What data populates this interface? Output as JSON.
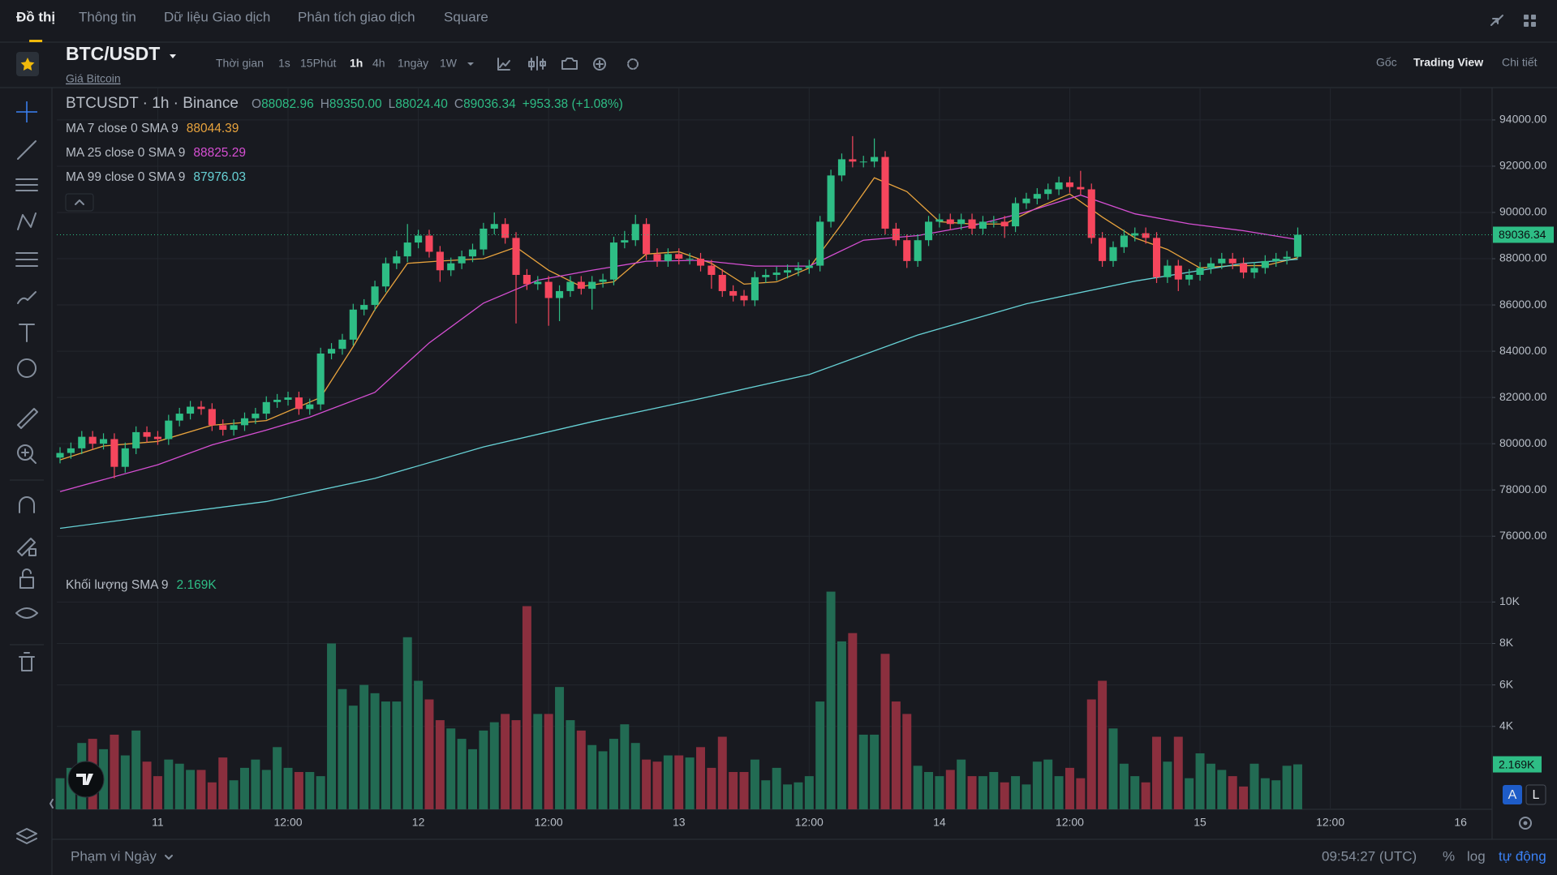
{
  "nav": {
    "tabs": [
      "Đồ thị",
      "Thông tin",
      "Dữ liệu Giao dịch",
      "Phân tích giao dịch",
      "Square"
    ],
    "active": 0
  },
  "symbol": {
    "pair": "BTC/USDT",
    "name": "Giá Bitcoin"
  },
  "toolbar": {
    "label": "Thời gian",
    "intervals": [
      "1s",
      "15Phút",
      "1h",
      "4h",
      "1ngày",
      "1W"
    ],
    "active": 2
  },
  "views": {
    "items": [
      "Gốc",
      "Trading View",
      "Chi tiết"
    ],
    "active": 1
  },
  "scale_buttons": [
    "A",
    "L"
  ],
  "footer": {
    "range": "Phạm vi Ngày",
    "clock": "09:54:27 (UTC)",
    "percent": "%",
    "log": "log",
    "auto": "tự động"
  },
  "chart_data": [
    {
      "type": "candlestick",
      "title": "BTCUSDT · 1h · Binance",
      "ohlc": [
        {
          "key": "O",
          "text": "88082.96"
        },
        {
          "key": "H",
          "text": "89350.00"
        },
        {
          "key": "L",
          "text": "88024.40"
        },
        {
          "key": "C",
          "text": "89036.34"
        }
      ],
      "change": "+953.38 (+1.08%)",
      "up_color": "#2ebd85",
      "down_color": "#f6465d",
      "x": [
        -9,
        -8,
        -7,
        -6,
        -5,
        -4,
        -3,
        -2,
        -1,
        0,
        1,
        2,
        3,
        4,
        5,
        6,
        7,
        8,
        9,
        10,
        11,
        12,
        13,
        14,
        15,
        16,
        17,
        18,
        19,
        20,
        21,
        22,
        23,
        24,
        25,
        26,
        27,
        28,
        29,
        30,
        31,
        32,
        33,
        34,
        35,
        36,
        37,
        38,
        39,
        40,
        41,
        42,
        43,
        44,
        45,
        46,
        47,
        48,
        49,
        50,
        51,
        52,
        53,
        54,
        55,
        56,
        57,
        58,
        59,
        60,
        61,
        62,
        63,
        64,
        65,
        66,
        67,
        68,
        69,
        70,
        71,
        72,
        73,
        74,
        75,
        76,
        77,
        78,
        79,
        80,
        81,
        82,
        83,
        84,
        85,
        86,
        87,
        88,
        89,
        90,
        91,
        92,
        93,
        94,
        95,
        96,
        97,
        98,
        99,
        100,
        101,
        102,
        103,
        104,
        105
      ],
      "open": [
        79400,
        79600,
        79800,
        80300,
        80000,
        80200,
        79000,
        79800,
        80500,
        80300,
        80200,
        81000,
        81300,
        81600,
        81500,
        80800,
        80600,
        80800,
        81100,
        81300,
        81800,
        81900,
        82000,
        81500,
        81700,
        83900,
        84100,
        84500,
        85800,
        86000,
        86800,
        87800,
        88100,
        88700,
        89000,
        88300,
        87500,
        87800,
        88100,
        88400,
        89300,
        89500,
        88900,
        87300,
        86900,
        87000,
        86300,
        86600,
        87000,
        86700,
        87000,
        87100,
        88700,
        88800,
        89500,
        88200,
        87900,
        88200,
        88000,
        88000,
        87700,
        87300,
        86600,
        86400,
        86200,
        87200,
        87300,
        87400,
        87500,
        87600,
        87700,
        89600,
        91600,
        92300,
        92200,
        92200,
        92400,
        89300,
        88800,
        87900,
        88800,
        89600,
        89700,
        89500,
        89700,
        89300,
        89600,
        89600,
        89400,
        90400,
        90600,
        90800,
        91000,
        91300,
        91100,
        91000,
        88900,
        87900,
        88500,
        89000,
        89100,
        88900,
        87200,
        87700,
        87100,
        87300,
        87600,
        87800,
        88000,
        87800,
        87400,
        87600,
        87900,
        88000,
        88082.96
      ],
      "high": [
        79850,
        80050,
        80550,
        80550,
        80450,
        80450,
        80050,
        80750,
        80750,
        80550,
        81250,
        81550,
        81850,
        81850,
        81750,
        81050,
        81050,
        81350,
        81550,
        82050,
        82150,
        82250,
        82250,
        81950,
        84150,
        84350,
        84750,
        86050,
        86250,
        87050,
        88050,
        88350,
        89500,
        89250,
        89250,
        88550,
        88050,
        88350,
        88650,
        89550,
        90000,
        89750,
        89150,
        87550,
        87250,
        87250,
        86850,
        87250,
        87250,
        87250,
        87350,
        88950,
        89200,
        89900,
        89750,
        88450,
        88450,
        88450,
        88250,
        88250,
        87950,
        87550,
        86850,
        86650,
        87450,
        87550,
        87650,
        87750,
        87850,
        87950,
        89850,
        91850,
        92550,
        93300,
        92450,
        93200,
        92650,
        89550,
        89050,
        89050,
        89850,
        89950,
        89950,
        89950,
        89950,
        89850,
        89850,
        89850,
        90650,
        90850,
        91050,
        91250,
        91550,
        91550,
        91800,
        91250,
        89150,
        88750,
        89250,
        89350,
        89350,
        89150,
        87950,
        87950,
        87550,
        87850,
        88050,
        88250,
        88250,
        88050,
        87850,
        88150,
        88250,
        88330,
        89350
      ],
      "low": [
        79150,
        79350,
        79550,
        79750,
        79750,
        78500,
        78750,
        79550,
        80050,
        79950,
        79950,
        80750,
        81050,
        81250,
        80550,
        80350,
        80350,
        80550,
        80850,
        81050,
        81550,
        81650,
        81250,
        81250,
        81450,
        83650,
        83850,
        84250,
        85550,
        85750,
        86550,
        87550,
        87850,
        88450,
        88050,
        87000,
        87250,
        87550,
        87850,
        88150,
        89050,
        88650,
        85200,
        86650,
        86650,
        85100,
        85300,
        86350,
        86450,
        85800,
        86750,
        86850,
        88450,
        88550,
        87950,
        87650,
        87650,
        87750,
        87750,
        87450,
        86700,
        86350,
        86150,
        85950,
        85950,
        86950,
        87050,
        87150,
        87250,
        87350,
        87450,
        89350,
        91350,
        91950,
        91950,
        91950,
        89050,
        88550,
        87600,
        87650,
        88550,
        89350,
        89250,
        89250,
        89050,
        89050,
        89350,
        88900,
        89150,
        90150,
        90350,
        90550,
        90750,
        90850,
        90750,
        88650,
        87650,
        87650,
        88250,
        88750,
        88650,
        86950,
        86950,
        86600,
        86850,
        87050,
        87350,
        87550,
        87550,
        87150,
        87150,
        87350,
        87650,
        87750,
        88024.4
      ],
      "close": [
        79600,
        79800,
        80300,
        80000,
        80200,
        79000,
        79800,
        80500,
        80300,
        80200,
        81000,
        81300,
        81600,
        81500,
        80800,
        80600,
        80800,
        81100,
        81300,
        81800,
        81900,
        82000,
        81500,
        81700,
        83900,
        84100,
        84500,
        85800,
        86000,
        86800,
        87800,
        88100,
        88700,
        89000,
        88300,
        87500,
        87800,
        88100,
        88400,
        89300,
        89500,
        88900,
        87300,
        86900,
        87000,
        86300,
        86600,
        87000,
        86700,
        87000,
        87100,
        88700,
        88800,
        89500,
        88200,
        87900,
        88200,
        88000,
        88000,
        87700,
        87300,
        86600,
        86400,
        86200,
        87200,
        87300,
        87400,
        87500,
        87600,
        87700,
        89600,
        91600,
        92300,
        92200,
        92200,
        92400,
        89300,
        88800,
        87900,
        88800,
        89600,
        89700,
        89500,
        89700,
        89300,
        89600,
        89600,
        89400,
        90400,
        90600,
        90800,
        91000,
        91300,
        91100,
        91000,
        88900,
        87900,
        88500,
        89000,
        89100,
        88900,
        87200,
        87700,
        87100,
        87300,
        87600,
        87800,
        88000,
        87800,
        87400,
        87600,
        87900,
        88000,
        88082.96,
        89036.34
      ],
      "xlim": [
        -9.3,
        122.9
      ],
      "ylim": [
        74500,
        95400
      ],
      "yticks": [
        {
          "value": 76000,
          "label": "76000.00"
        },
        {
          "value": 78000,
          "label": "78000.00"
        },
        {
          "value": 80000,
          "label": "80000.00"
        },
        {
          "value": 82000,
          "label": "82000.00"
        },
        {
          "value": 84000,
          "label": "84000.00"
        },
        {
          "value": 86000,
          "label": "86000.00"
        },
        {
          "value": 88000,
          "label": "88000.00"
        },
        {
          "value": 90000,
          "label": "90000.00"
        },
        {
          "value": 92000,
          "label": "92000.00"
        },
        {
          "value": 94000,
          "label": "94000.00"
        }
      ],
      "grid": true,
      "series": [
        {
          "name": "MA 7 close 0 SMA 9",
          "color": "#e8a33d",
          "x": [
            -9,
            -5,
            0,
            5,
            10,
            15,
            18,
            20,
            23,
            26,
            30,
            33,
            36,
            39,
            42,
            45,
            48,
            51,
            54,
            57,
            60,
            63,
            66,
            69,
            72,
            75,
            78,
            81,
            84,
            87,
            90,
            93,
            96,
            99,
            102,
            105
          ],
          "values": [
            79300,
            79900,
            80100,
            80800,
            81000,
            82000,
            84200,
            85800,
            87800,
            87900,
            88000,
            88500,
            87500,
            86800,
            87000,
            88200,
            88300,
            87800,
            86900,
            87000,
            87600,
            89500,
            91500,
            90900,
            89600,
            89500,
            89500,
            90200,
            90800,
            89800,
            88900,
            88400,
            87600,
            87700,
            87700,
            88044.39
          ]
        },
        {
          "name": "MA 25 close 0 SMA 9",
          "color": "#d64fd3",
          "x": [
            -9,
            0,
            5,
            10,
            14,
            20,
            25,
            30,
            35,
            40,
            45,
            50,
            55,
            60,
            65,
            70,
            75,
            80,
            85,
            90,
            95,
            100,
            105
          ],
          "values": [
            77930,
            79090,
            79950,
            80590,
            81150,
            82220,
            84360,
            86080,
            87070,
            87500,
            87890,
            87930,
            87680,
            87680,
            88800,
            89000,
            89420,
            90020,
            90750,
            89940,
            89510,
            89210,
            88825.29
          ]
        },
        {
          "name": "MA 99 close 0 SMA 9",
          "color": "#67d2d6",
          "x": [
            -9,
            0,
            10,
            20,
            30,
            40,
            50,
            60,
            70,
            80,
            90,
            100,
            105
          ],
          "values": [
            76340,
            76900,
            77500,
            78500,
            79860,
            80950,
            81950,
            82990,
            84700,
            86050,
            87030,
            87800,
            87976.03
          ]
        }
      ]
    },
    {
      "type": "bar",
      "title": "Khối lượng SMA 9",
      "sma_label": "2.169K",
      "current_label": "2.169K",
      "up_color": "#226b53",
      "down_color": "#8b2f3e",
      "x": [
        -9,
        -8,
        -7,
        -6,
        -5,
        -4,
        -3,
        -2,
        -1,
        0,
        1,
        2,
        3,
        4,
        5,
        6,
        7,
        8,
        9,
        10,
        11,
        12,
        13,
        14,
        15,
        16,
        17,
        18,
        19,
        20,
        21,
        22,
        23,
        24,
        25,
        26,
        27,
        28,
        29,
        30,
        31,
        32,
        33,
        34,
        35,
        36,
        37,
        38,
        39,
        40,
        41,
        42,
        43,
        44,
        45,
        46,
        47,
        48,
        49,
        50,
        51,
        52,
        53,
        54,
        55,
        56,
        57,
        58,
        59,
        60,
        61,
        62,
        63,
        64,
        65,
        66,
        67,
        68,
        69,
        70,
        71,
        72,
        73,
        74,
        75,
        76,
        77,
        78,
        79,
        80,
        81,
        82,
        83,
        84,
        85,
        86,
        87,
        88,
        89,
        90,
        91,
        92,
        93,
        94,
        95,
        96,
        97,
        98,
        99,
        100,
        101,
        102,
        103,
        104,
        105
      ],
      "values": [
        1500,
        2000,
        3200,
        3400,
        2900,
        3600,
        2600,
        3800,
        2300,
        1600,
        2400,
        2200,
        1900,
        1900,
        1300,
        2500,
        1400,
        2000,
        2400,
        1900,
        3000,
        2000,
        1800,
        1800,
        1600,
        8000,
        5800,
        5000,
        6000,
        5600,
        5200,
        5200,
        8300,
        6200,
        5300,
        4300,
        3900,
        3400,
        2900,
        3800,
        4200,
        4600,
        4300,
        9800,
        4600,
        4600,
        5900,
        4300,
        3800,
        3100,
        2800,
        3400,
        4100,
        3200,
        2400,
        2300,
        2600,
        2600,
        2500,
        3000,
        2000,
        3500,
        1800,
        1800,
        2400,
        1400,
        2000,
        1200,
        1300,
        1600,
        5200,
        10500,
        8100,
        8500,
        3600,
        3600,
        7500,
        5200,
        4600,
        2100,
        1800,
        1600,
        1900,
        2400,
        1600,
        1600,
        1800,
        1300,
        1600,
        1200,
        2300,
        2400,
        1600,
        2000,
        1500,
        5300,
        6200,
        3900,
        2200,
        1600,
        1300,
        3500,
        2300,
        3500,
        1500,
        2700,
        2200,
        1900,
        1600,
        1100,
        2200,
        1500,
        1400,
        2100,
        2169
      ],
      "xlim": [
        -9.3,
        122.9
      ],
      "xticks": [
        {
          "value": 0,
          "label": "11"
        },
        {
          "value": 12,
          "label": "12:00"
        },
        {
          "value": 24,
          "label": "12"
        },
        {
          "value": 36,
          "label": "12:00"
        },
        {
          "value": 48,
          "label": "13"
        },
        {
          "value": 60,
          "label": "12:00"
        },
        {
          "value": 72,
          "label": "14"
        },
        {
          "value": 84,
          "label": "12:00"
        },
        {
          "value": 96,
          "label": "15"
        },
        {
          "value": 108,
          "label": "12:00"
        },
        {
          "value": 120,
          "label": "16"
        }
      ],
      "ylim": [
        0,
        11500
      ],
      "yticks": [
        {
          "value": 4000,
          "label": "4K"
        },
        {
          "value": 6000,
          "label": "6K"
        },
        {
          "value": 8000,
          "label": "8K"
        },
        {
          "value": 10000,
          "label": "10K"
        }
      ],
      "grid": true
    }
  ]
}
